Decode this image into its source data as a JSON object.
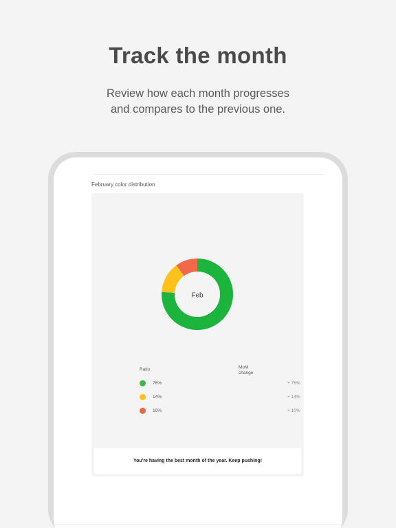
{
  "header": {
    "title": "Track the month",
    "subtitle_line1": "Review how each month progresses",
    "subtitle_line2": "and compares to the previous one."
  },
  "card": {
    "title": "February color distribution",
    "center_label": "Feb",
    "ratio_header": "Ratio",
    "mom_header_line1": "MoM",
    "mom_header_line2": "change",
    "message": "You're having the best month of the year. Keep pushing!"
  },
  "chart_data": {
    "type": "pie",
    "categories": [
      "green",
      "yellow",
      "red"
    ],
    "values": [
      76,
      14,
      10
    ],
    "colors": [
      "#1db43d",
      "#fcc21b",
      "#f2694a"
    ],
    "center_label": "Feb"
  },
  "legend": [
    {
      "ratio": "76%",
      "mom": "+ 76%",
      "color": "#3cb84a"
    },
    {
      "ratio": "14%",
      "mom": "+ 14%",
      "color": "#fcc21b"
    },
    {
      "ratio": "10%",
      "mom": "+ 10%",
      "color": "#ea6747"
    }
  ],
  "tabbar": {
    "icons": [
      "calendar-tab-icon",
      "grid-tab-icon",
      "settings-tab-icon"
    ]
  }
}
